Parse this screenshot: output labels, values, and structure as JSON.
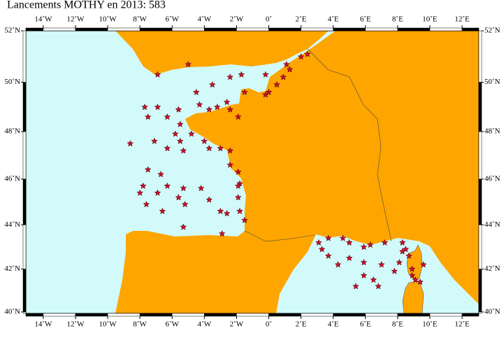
{
  "title": "Lancements MOTHY en 2013: 583",
  "map": {
    "projection": "mercator",
    "lon_range": [
      -15.08,
      13.04
    ],
    "lat_range": [
      39.93,
      52
    ],
    "land_color": "#ffa500",
    "sea_color": "#d2fafa",
    "marker_color": "#c8102e",
    "lon_ticks": [
      {
        "value": -14,
        "label": "14˚W"
      },
      {
        "value": -12,
        "label": "12˚W"
      },
      {
        "value": -10,
        "label": "10˚W"
      },
      {
        "value": -8,
        "label": "8˚W"
      },
      {
        "value": -6,
        "label": "6˚W"
      },
      {
        "value": -4,
        "label": "4˚W"
      },
      {
        "value": -2,
        "label": "2˚W"
      },
      {
        "value": 0,
        "label": "0˚"
      },
      {
        "value": 2,
        "label": "2˚E"
      },
      {
        "value": 4,
        "label": "4˚E"
      },
      {
        "value": 6,
        "label": "6˚E"
      },
      {
        "value": 8,
        "label": "8˚E"
      },
      {
        "value": 10,
        "label": "10˚E"
      },
      {
        "value": 12,
        "label": "12˚E"
      }
    ],
    "lat_ticks": [
      {
        "value": 40,
        "label": "40˚N"
      },
      {
        "value": 42,
        "label": "42˚N"
      },
      {
        "value": 44,
        "label": "44˚N"
      },
      {
        "value": 46,
        "label": "46˚N"
      },
      {
        "value": 48,
        "label": "48˚N"
      },
      {
        "value": 50,
        "label": "50˚N"
      },
      {
        "value": 52,
        "label": "52˚N"
      }
    ],
    "points": [
      [
        -8.6,
        47.5
      ],
      [
        -7.7,
        49.0
      ],
      [
        -7.5,
        48.6
      ],
      [
        -7.1,
        47.6
      ],
      [
        -7.5,
        46.4
      ],
      [
        -6.7,
        46.2
      ],
      [
        -7.8,
        45.7
      ],
      [
        -8.0,
        45.4
      ],
      [
        -7.6,
        44.9
      ],
      [
        -6.9,
        45.4
      ],
      [
        -6.3,
        45.7
      ],
      [
        -5.3,
        45.6
      ],
      [
        -5.6,
        45.2
      ],
      [
        -5.2,
        44.9
      ],
      [
        -4.2,
        45.6
      ],
      [
        -3.7,
        45.1
      ],
      [
        -3.0,
        44.6
      ],
      [
        -2.6,
        44.5
      ],
      [
        -1.9,
        45.2
      ],
      [
        -1.8,
        45.8
      ],
      [
        -1.8,
        44.6
      ],
      [
        -1.5,
        44.2
      ],
      [
        -2.9,
        43.6
      ],
      [
        -5.3,
        43.9
      ],
      [
        -6.6,
        44.6
      ],
      [
        -6.9,
        49.0
      ],
      [
        -6.3,
        48.6
      ],
      [
        -5.6,
        48.9
      ],
      [
        -5.5,
        48.3
      ],
      [
        -5.8,
        47.9
      ],
      [
        -6.3,
        47.3
      ],
      [
        -5.5,
        47.6
      ],
      [
        -5.3,
        47.2
      ],
      [
        -4.8,
        47.9
      ],
      [
        -4.0,
        47.6
      ],
      [
        -3.7,
        47.3
      ],
      [
        -3.0,
        47.3
      ],
      [
        -2.4,
        47.2
      ],
      [
        -2.4,
        46.6
      ],
      [
        -1.9,
        46.3
      ],
      [
        -1.9,
        45.7
      ],
      [
        -4.3,
        49.1
      ],
      [
        -3.7,
        48.9
      ],
      [
        -3.2,
        49.0
      ],
      [
        -2.4,
        48.9
      ],
      [
        -1.9,
        48.6
      ],
      [
        -2.6,
        49.2
      ],
      [
        -4.5,
        49.6
      ],
      [
        -3.5,
        49.9
      ],
      [
        -2.4,
        50.2
      ],
      [
        -1.7,
        50.3
      ],
      [
        -1.5,
        49.6
      ],
      [
        -0.2,
        49.5
      ],
      [
        0.0,
        49.6
      ],
      [
        0.5,
        49.9
      ],
      [
        0.9,
        50.2
      ],
      [
        1.3,
        50.5
      ],
      [
        2.0,
        51.0
      ],
      [
        2.4,
        51.1
      ],
      [
        -6.9,
        50.3
      ],
      [
        -5.0,
        50.7
      ],
      [
        1.1,
        50.7
      ],
      [
        -0.2,
        50.3
      ],
      [
        3.1,
        43.2
      ],
      [
        3.7,
        43.4
      ],
      [
        4.6,
        43.4
      ],
      [
        5.0,
        43.2
      ],
      [
        5.9,
        43.0
      ],
      [
        6.3,
        43.1
      ],
      [
        7.2,
        43.2
      ],
      [
        3.3,
        42.9
      ],
      [
        3.7,
        42.6
      ],
      [
        4.3,
        42.2
      ],
      [
        5.0,
        42.5
      ],
      [
        5.9,
        42.3
      ],
      [
        7.0,
        42.2
      ],
      [
        5.9,
        41.7
      ],
      [
        5.4,
        41.2
      ],
      [
        6.5,
        41.5
      ],
      [
        6.8,
        41.2
      ],
      [
        8.1,
        42.3
      ],
      [
        8.3,
        42.8
      ],
      [
        8.5,
        42.9
      ],
      [
        8.7,
        42.6
      ],
      [
        8.9,
        42.0
      ],
      [
        9.1,
        41.5
      ],
      [
        9.4,
        41.4
      ],
      [
        9.6,
        42.2
      ],
      [
        7.8,
        41.9
      ],
      [
        8.9,
        41.7
      ],
      [
        8.3,
        43.2
      ]
    ]
  }
}
